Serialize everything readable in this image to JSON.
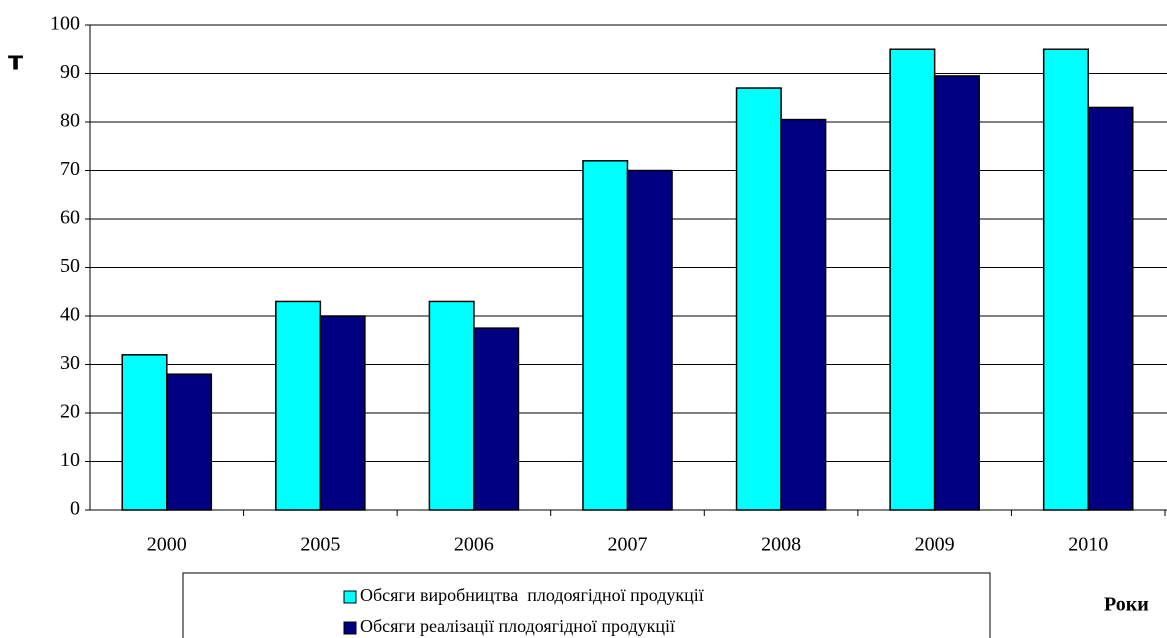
{
  "chart_data": {
    "type": "bar",
    "y_label": "т",
    "x_label": "Роки",
    "categories": [
      "2000",
      "2005",
      "2006",
      "2007",
      "2008",
      "2009",
      "2010"
    ],
    "series": [
      {
        "name": "Обсяги виробництва  плодоягідної продукції",
        "color": "#00ffff",
        "values": [
          32,
          43,
          43,
          72,
          87,
          95,
          95
        ]
      },
      {
        "name": "Обсяги реалізації плодоягідної продукції",
        "color": "#000080",
        "values": [
          28,
          40,
          37.5,
          70,
          80.5,
          89.5,
          83
        ]
      }
    ],
    "ylim": [
      0,
      100
    ],
    "yticks": [
      0,
      10,
      20,
      30,
      40,
      50,
      60,
      70,
      80,
      90,
      100
    ],
    "grid": true
  }
}
